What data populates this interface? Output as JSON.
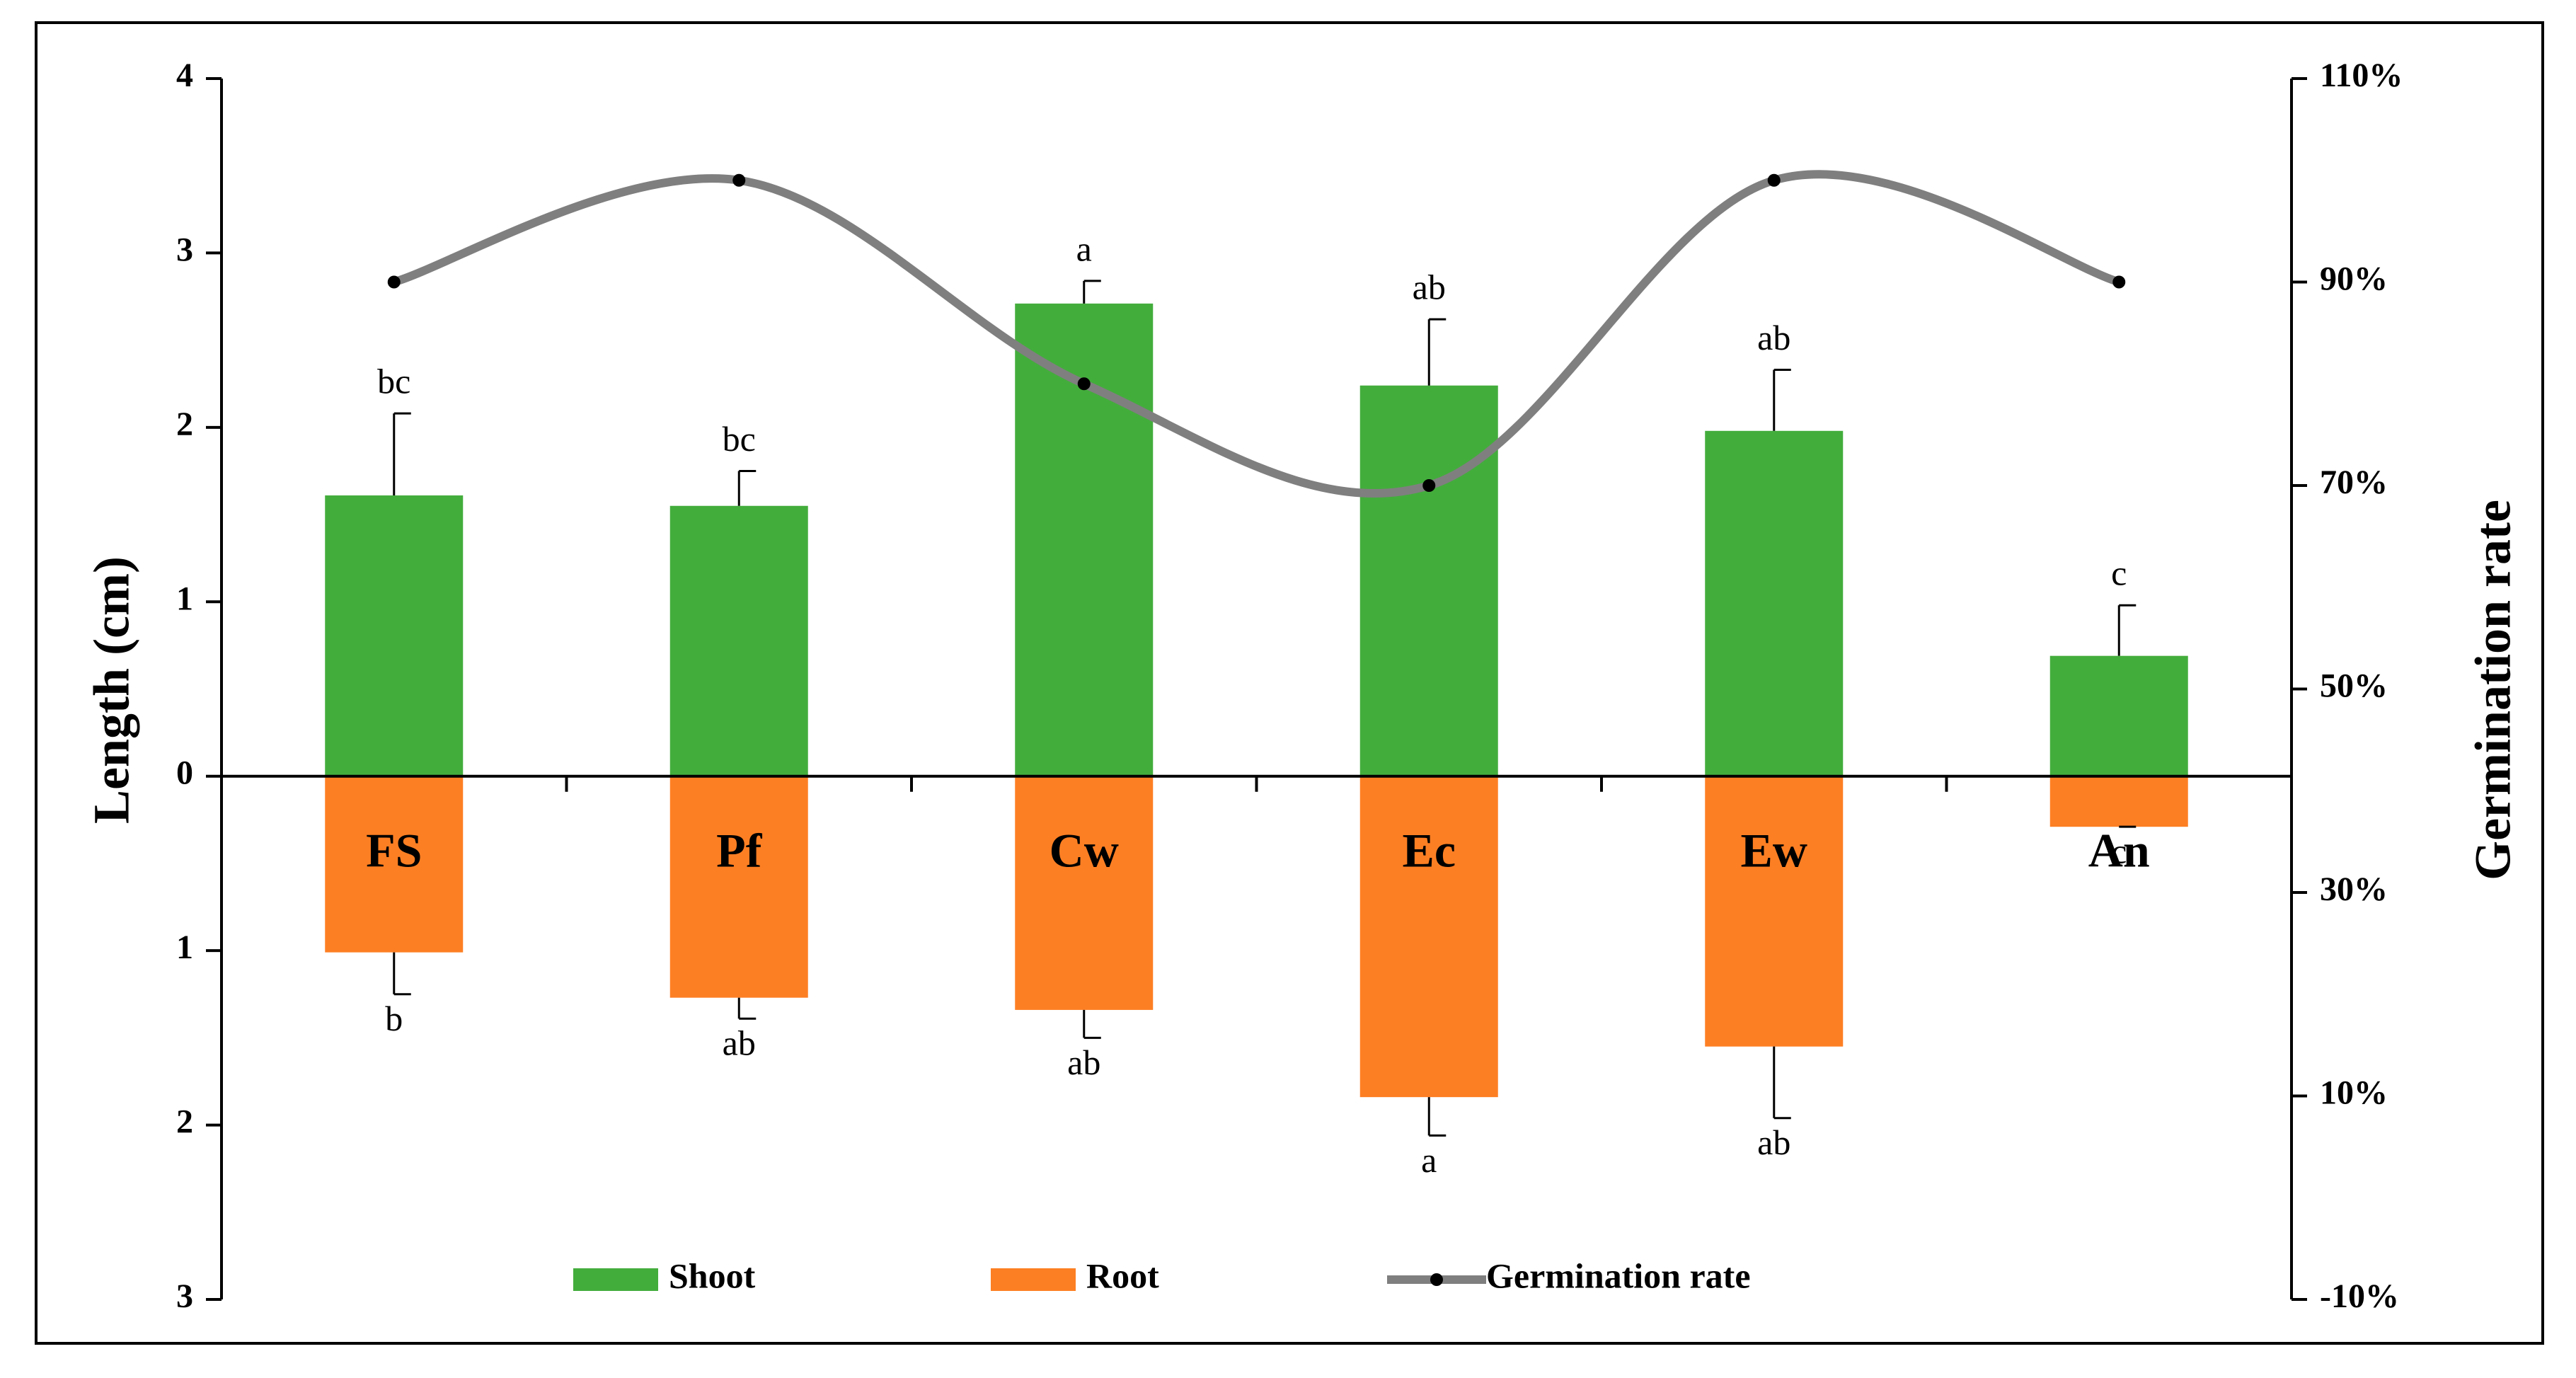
{
  "chart_data": {
    "type": "bar",
    "y_label": "Length (cm)",
    "y2_label": "Germination rate",
    "categories": [
      "FS",
      "Pf",
      "Cw",
      "Ec",
      "Ew",
      "An"
    ],
    "ylim": [
      -3,
      4
    ],
    "yticks": [
      {
        "value": -3,
        "label": "3"
      },
      {
        "value": -2,
        "label": "2"
      },
      {
        "value": -1,
        "label": "1"
      },
      0,
      1,
      2,
      3,
      4
    ],
    "y2lim": [
      -10,
      110
    ],
    "y2ticks": [
      {
        "value": -10,
        "label": "-10%"
      },
      {
        "value": 10,
        "label": "10%"
      },
      {
        "value": 30,
        "label": "30%"
      },
      {
        "value": 50,
        "label": "50%"
      },
      {
        "value": 70,
        "label": "70%"
      },
      {
        "value": 90,
        "label": "90%"
      },
      {
        "value": 110,
        "label": "110%"
      }
    ],
    "series": [
      {
        "name": "Shoot",
        "type": "bar",
        "color": "#43ad3c",
        "values": [
          1.61,
          1.55,
          2.71,
          2.24,
          1.98,
          0.69
        ],
        "errors": [
          0.47,
          0.2,
          0.13,
          0.38,
          0.35,
          0.29
        ],
        "letters": [
          "bc",
          "bc",
          "a",
          "ab",
          "ab",
          "c"
        ]
      },
      {
        "name": "Root",
        "type": "bar",
        "color": "#fd7f23",
        "values": [
          -1.01,
          -1.27,
          -1.34,
          -1.84,
          -1.55,
          -0.29
        ],
        "errors": [
          0.24,
          0.12,
          0.16,
          0.22,
          0.41,
          0
        ],
        "letters": [
          "b",
          "ab",
          "ab",
          "a",
          "ab",
          "c"
        ]
      },
      {
        "name": "Germination rate",
        "type": "line",
        "axis": "y2",
        "color": "#7f7f7f",
        "values": [
          90,
          100,
          80,
          70,
          100,
          90
        ]
      }
    ]
  }
}
